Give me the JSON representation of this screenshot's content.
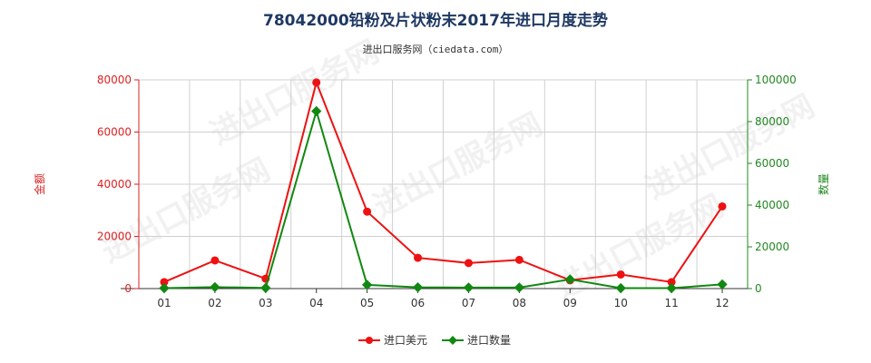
{
  "chart_data": {
    "type": "line",
    "title": "78042000铅粉及片状粉末2017年进口月度走势",
    "subtitle": "进出口服务网（ciedata.com）",
    "categories": [
      "01",
      "02",
      "03",
      "04",
      "05",
      "06",
      "07",
      "08",
      "09",
      "10",
      "11",
      "12"
    ],
    "left_axis": {
      "label": "金额",
      "ylim": [
        0,
        80000
      ],
      "ticks": [
        0,
        20000,
        40000,
        60000,
        80000
      ]
    },
    "right_axis": {
      "label": "数量",
      "ylim": [
        0,
        100000
      ],
      "ticks": [
        0,
        20000,
        40000,
        60000,
        80000,
        100000
      ]
    },
    "series": [
      {
        "name": "进口美元",
        "axis": "left",
        "color": "#ee1111",
        "values": [
          2500,
          10800,
          3800,
          79000,
          29500,
          11800,
          9800,
          11000,
          3200,
          5400,
          2500,
          31500
        ]
      },
      {
        "name": "进口数量",
        "axis": "right",
        "color": "#118811",
        "values": [
          200,
          700,
          300,
          85000,
          1800,
          600,
          500,
          500,
          4400,
          200,
          200,
          2000
        ]
      }
    ],
    "grid": true,
    "legend_position": "bottom-center",
    "watermark": "进出口服务网"
  },
  "colors": {
    "left_axis": "#dd2222",
    "right_axis": "#228822",
    "grid": "#d0d0d0",
    "title": "#1f3864"
  }
}
